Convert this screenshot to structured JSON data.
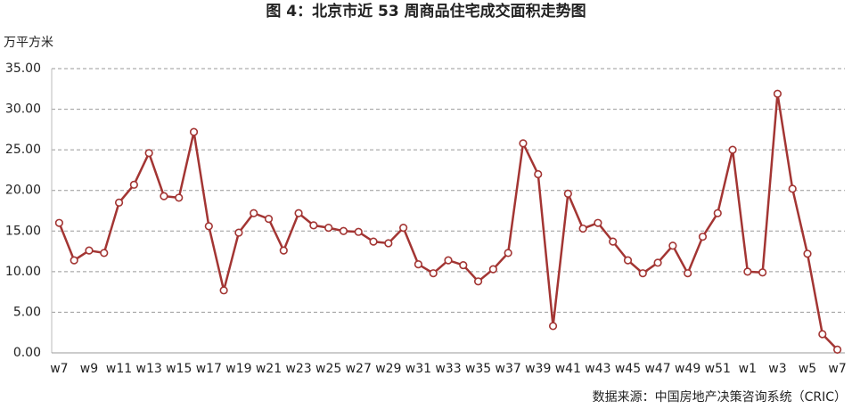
{
  "chart_data": {
    "type": "line",
    "title": "图 4：北京市近 53 周商品住宅成交面积走势图",
    "y_unit": "万平方米",
    "source": "数据来源：中国房地产决策咨询系统（CRIC）",
    "categories": [
      "w7",
      null,
      "w9",
      null,
      "w11",
      null,
      "w13",
      null,
      "w15",
      null,
      "w17",
      null,
      "w19",
      null,
      "w21",
      null,
      "w23",
      null,
      "w25",
      null,
      "w27",
      null,
      "w29",
      null,
      "w31",
      null,
      "w33",
      null,
      "w35",
      null,
      "w37",
      null,
      "w39",
      null,
      "w41",
      null,
      "w43",
      null,
      "w45",
      null,
      "w47",
      null,
      "w49",
      null,
      "w51",
      null,
      "w1",
      null,
      "w3",
      null,
      "w5",
      null,
      "w7"
    ],
    "series": [
      {
        "color": "#a33533",
        "values": [
          16.0,
          11.4,
          12.6,
          12.3,
          18.5,
          20.7,
          24.6,
          19.3,
          19.1,
          27.2,
          15.6,
          7.7,
          14.8,
          17.2,
          16.5,
          12.6,
          17.2,
          15.7,
          15.4,
          15.0,
          14.9,
          13.7,
          13.5,
          15.4,
          10.9,
          9.8,
          11.4,
          10.8,
          8.8,
          10.3,
          12.3,
          25.8,
          22.0,
          3.3,
          19.6,
          15.3,
          16.0,
          13.7,
          11.4,
          9.8,
          11.1,
          13.2,
          9.8,
          14.3,
          17.2,
          25.0,
          10.0,
          9.9,
          31.9,
          20.2,
          12.2,
          2.3,
          0.4
        ]
      }
    ],
    "ylim": [
      0,
      35
    ],
    "yticks": [
      {
        "value": 0,
        "label": "0.00"
      },
      {
        "value": 5,
        "label": "5.00"
      },
      {
        "value": 10,
        "label": "10.00"
      },
      {
        "value": 15,
        "label": "15.00"
      },
      {
        "value": 20,
        "label": "20.00"
      },
      {
        "value": 25,
        "label": "25.00"
      },
      {
        "value": 30,
        "label": "30.00"
      },
      {
        "value": 35,
        "label": "35.00"
      }
    ],
    "grid": true
  }
}
